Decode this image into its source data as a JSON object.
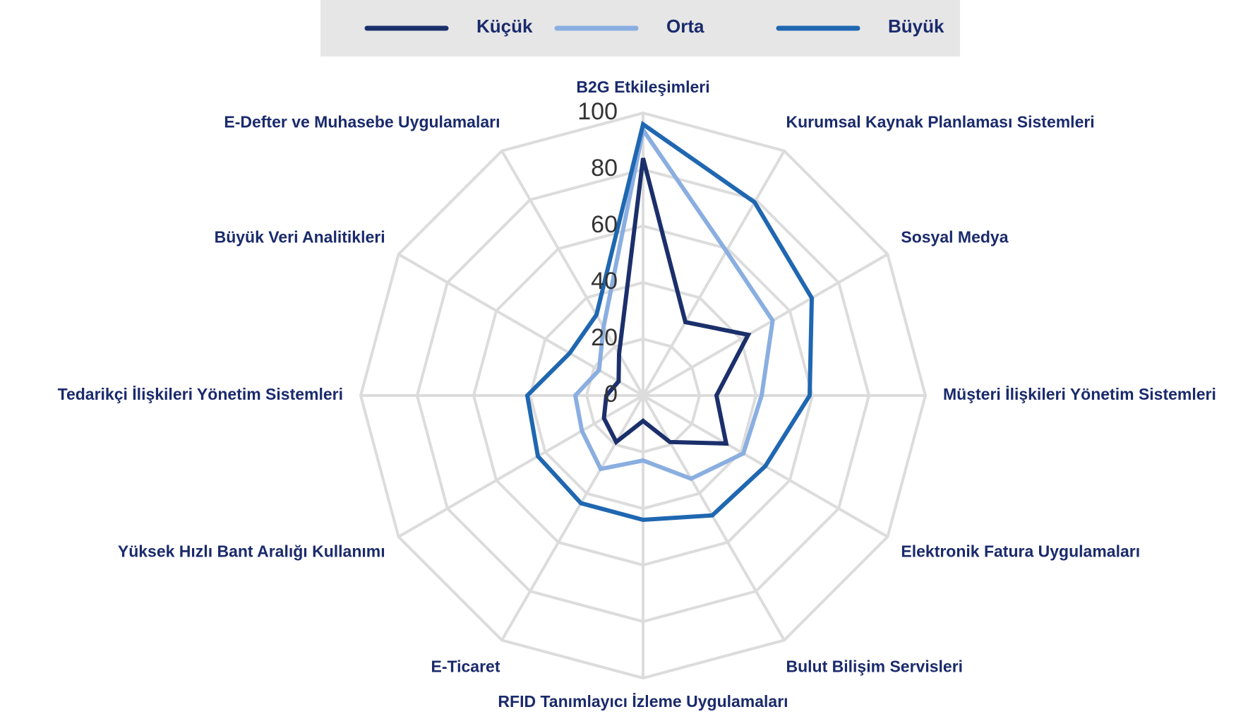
{
  "chart_data": {
    "type": "radar",
    "categories": [
      "B2G Etkileşimleri",
      "Kurumsal Kaynak Planlaması Sistemleri",
      "Sosyal Medya",
      "Müşteri İlişkileri Yönetim Sistemleri",
      "Elektronik Fatura Uygulamaları",
      "Bulut Bilişim Servisleri",
      "RFID Tanımlayıcı İzleme Uygulamaları",
      "E-Ticaret",
      "Yüksek Hızlı Bant Aralığı Kullanımı",
      "Tedarikçi İlişkileri Yönetim Sistemleri",
      "Büyük Veri Analitikleri",
      "E-Defter ve Muhasebe Uygulamaları"
    ],
    "series": [
      {
        "name": "Küçük",
        "color": "#1b2f6b",
        "values": [
          84,
          30,
          43,
          26,
          34,
          19,
          9,
          19,
          16,
          13,
          10,
          17
        ]
      },
      {
        "name": "Orta",
        "color": "#8aaee0",
        "values": [
          94,
          59,
          53,
          42,
          41,
          34,
          23,
          30,
          25,
          24,
          18,
          28
        ]
      },
      {
        "name": "Büyük",
        "color": "#1f67b1",
        "values": [
          96,
          79,
          69,
          59,
          50,
          49,
          44,
          44,
          43,
          41,
          30,
          33
        ]
      }
    ],
    "ylim": [
      0,
      100
    ],
    "yticks": [
      0,
      20,
      40,
      60,
      80,
      100
    ],
    "grid": true,
    "legend": "top"
  }
}
